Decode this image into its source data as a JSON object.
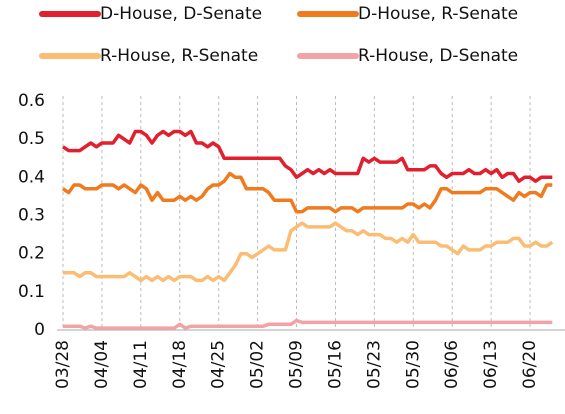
{
  "chart_data": {
    "type": "line",
    "categories": [
      "03/28",
      null,
      null,
      null,
      null,
      null,
      null,
      "04/04",
      null,
      null,
      null,
      null,
      null,
      null,
      "04/11",
      null,
      null,
      null,
      null,
      null,
      null,
      "04/18",
      null,
      null,
      null,
      null,
      null,
      null,
      "04/25",
      null,
      null,
      null,
      null,
      null,
      null,
      "05/02",
      null,
      null,
      null,
      null,
      null,
      null,
      "05/09",
      null,
      null,
      null,
      null,
      null,
      null,
      "05/16",
      null,
      null,
      null,
      null,
      null,
      null,
      "05/23",
      null,
      null,
      null,
      null,
      null,
      null,
      "05/30",
      null,
      null,
      null,
      null,
      null,
      null,
      "06/06",
      null,
      null,
      null,
      null,
      null,
      null,
      "06/13",
      null,
      null,
      null,
      null,
      null,
      null,
      "06/20",
      null,
      null,
      null,
      null
    ],
    "series": [
      {
        "name": "D-House, D-Senate",
        "color": "#e0202e",
        "values": [
          0.48,
          0.47,
          0.47,
          0.47,
          0.48,
          0.49,
          0.48,
          0.49,
          0.49,
          0.49,
          0.51,
          0.5,
          0.49,
          0.52,
          0.52,
          0.51,
          0.49,
          0.51,
          0.52,
          0.51,
          0.52,
          0.52,
          0.51,
          0.52,
          0.49,
          0.49,
          0.48,
          0.49,
          0.48,
          0.45,
          0.45,
          0.45,
          0.45,
          0.45,
          0.45,
          0.45,
          0.45,
          0.45,
          0.45,
          0.45,
          0.43,
          0.42,
          0.4,
          0.41,
          0.42,
          0.41,
          0.42,
          0.41,
          0.42,
          0.41,
          0.41,
          0.41,
          0.41,
          0.41,
          0.45,
          0.44,
          0.45,
          0.44,
          0.44,
          0.44,
          0.44,
          0.45,
          0.42,
          0.42,
          0.42,
          0.42,
          0.43,
          0.43,
          0.41,
          0.4,
          0.41,
          0.41,
          0.41,
          0.42,
          0.41,
          0.41,
          0.42,
          0.41,
          0.42,
          0.4,
          0.41,
          0.41,
          0.39,
          0.4,
          0.4,
          0.39,
          0.4,
          0.4,
          0.4
        ]
      },
      {
        "name": "D-House, R-Senate",
        "color": "#f07b1e",
        "values": [
          0.37,
          0.36,
          0.38,
          0.38,
          0.37,
          0.37,
          0.37,
          0.38,
          0.38,
          0.38,
          0.37,
          0.38,
          0.37,
          0.36,
          0.38,
          0.37,
          0.34,
          0.36,
          0.34,
          0.34,
          0.34,
          0.35,
          0.34,
          0.35,
          0.34,
          0.35,
          0.37,
          0.38,
          0.38,
          0.39,
          0.41,
          0.4,
          0.4,
          0.37,
          0.37,
          0.37,
          0.37,
          0.36,
          0.34,
          0.34,
          0.34,
          0.34,
          0.31,
          0.31,
          0.32,
          0.32,
          0.32,
          0.32,
          0.32,
          0.31,
          0.32,
          0.32,
          0.32,
          0.31,
          0.32,
          0.32,
          0.32,
          0.32,
          0.32,
          0.32,
          0.32,
          0.32,
          0.33,
          0.33,
          0.32,
          0.33,
          0.32,
          0.34,
          0.37,
          0.37,
          0.36,
          0.36,
          0.36,
          0.36,
          0.36,
          0.36,
          0.37,
          0.37,
          0.37,
          0.36,
          0.35,
          0.34,
          0.36,
          0.35,
          0.36,
          0.36,
          0.35,
          0.38,
          0.38
        ]
      },
      {
        "name": "R-House, R-Senate",
        "color": "#fbbd74",
        "values": [
          0.15,
          0.15,
          0.15,
          0.14,
          0.15,
          0.15,
          0.14,
          0.14,
          0.14,
          0.14,
          0.14,
          0.14,
          0.15,
          0.14,
          0.13,
          0.14,
          0.13,
          0.14,
          0.13,
          0.14,
          0.13,
          0.14,
          0.14,
          0.14,
          0.13,
          0.13,
          0.14,
          0.13,
          0.14,
          0.13,
          0.15,
          0.17,
          0.2,
          0.2,
          0.19,
          0.2,
          0.21,
          0.22,
          0.21,
          0.21,
          0.21,
          0.26,
          0.27,
          0.28,
          0.27,
          0.27,
          0.27,
          0.27,
          0.27,
          0.28,
          0.27,
          0.26,
          0.26,
          0.25,
          0.26,
          0.25,
          0.25,
          0.25,
          0.24,
          0.24,
          0.23,
          0.24,
          0.23,
          0.25,
          0.23,
          0.23,
          0.23,
          0.23,
          0.22,
          0.22,
          0.21,
          0.2,
          0.22,
          0.21,
          0.21,
          0.21,
          0.22,
          0.22,
          0.23,
          0.23,
          0.23,
          0.24,
          0.24,
          0.22,
          0.22,
          0.23,
          0.22,
          0.22,
          0.23
        ]
      },
      {
        "name": "R-House, D-Senate",
        "color": "#f2a3a6",
        "values": [
          0.01,
          0.01,
          0.01,
          0.01,
          0.005,
          0.01,
          0.005,
          0.005,
          0.005,
          0.005,
          0.005,
          0.005,
          0.005,
          0.005,
          0.005,
          0.005,
          0.005,
          0.005,
          0.005,
          0.005,
          0.005,
          0.015,
          0.005,
          0.01,
          0.01,
          0.01,
          0.01,
          0.01,
          0.01,
          0.01,
          0.01,
          0.01,
          0.01,
          0.01,
          0.01,
          0.01,
          0.01,
          0.015,
          0.015,
          0.015,
          0.015,
          0.015,
          0.025,
          0.02,
          0.02,
          0.02,
          0.02,
          0.02,
          0.02,
          0.02,
          0.02,
          0.02,
          0.02,
          0.02,
          0.02,
          0.02,
          0.02,
          0.02,
          0.02,
          0.02,
          0.02,
          0.02,
          0.02,
          0.02,
          0.02,
          0.02,
          0.02,
          0.02,
          0.02,
          0.02,
          0.02,
          0.02,
          0.02,
          0.02,
          0.02,
          0.02,
          0.02,
          0.02,
          0.02,
          0.02,
          0.02,
          0.02,
          0.02,
          0.02,
          0.02,
          0.02,
          0.02,
          0.02,
          0.02
        ]
      }
    ],
    "ylim": [
      0,
      0.6
    ],
    "yticks": [
      0,
      0.1,
      0.2,
      0.3,
      0.4,
      0.5,
      0.6
    ],
    "grid": "x"
  }
}
